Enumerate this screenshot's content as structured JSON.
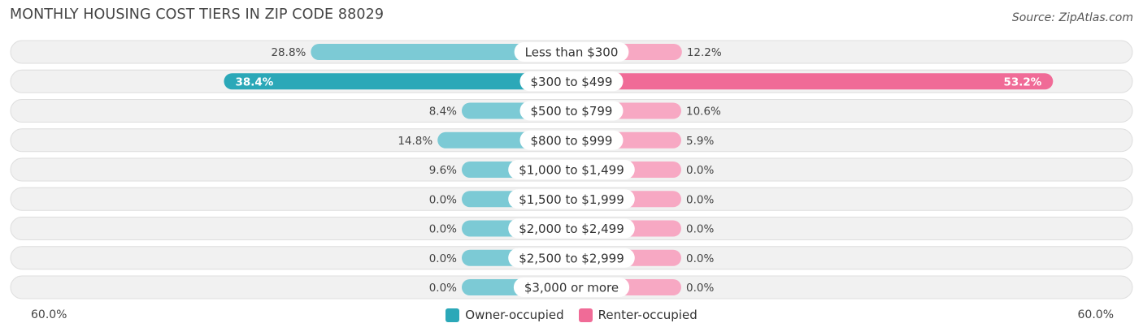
{
  "header": {
    "title": "MONTHLY HOUSING COST TIERS IN ZIP CODE 88029",
    "source": "Source: ZipAtlas.com"
  },
  "colors": {
    "owner": "#2ba8b8",
    "owner_light": "#7ccad5",
    "renter": "#f06b97",
    "renter_light": "#f7a8c3",
    "row_bg": "#f1f1f1",
    "row_border": "#dedede"
  },
  "axis": {
    "left_label": "60.0%",
    "right_label": "60.0%"
  },
  "legend": {
    "owner_label": "Owner-occupied",
    "renter_label": "Renter-occupied"
  },
  "chart_data": {
    "type": "bar",
    "orientation": "diverging-horizontal",
    "xlim": [
      -60,
      60
    ],
    "categories": [
      "Less than $300",
      "$300 to $499",
      "$500 to $799",
      "$800 to $999",
      "$1,000 to $1,499",
      "$1,500 to $1,999",
      "$2,000 to $2,499",
      "$2,500 to $2,999",
      "$3,000 or more"
    ],
    "series": [
      {
        "name": "Owner-occupied",
        "values": [
          28.8,
          38.4,
          8.4,
          14.8,
          9.6,
          0.0,
          0.0,
          0.0,
          0.0
        ],
        "labels": [
          "28.8%",
          "38.4%",
          "8.4%",
          "14.8%",
          "9.6%",
          "0.0%",
          "0.0%",
          "0.0%",
          "0.0%"
        ]
      },
      {
        "name": "Renter-occupied",
        "values": [
          12.2,
          53.2,
          10.6,
          5.9,
          0.0,
          0.0,
          0.0,
          0.0,
          0.0
        ],
        "labels": [
          "12.2%",
          "53.2%",
          "10.6%",
          "5.9%",
          "0.0%",
          "0.0%",
          "0.0%",
          "0.0%",
          "0.0%"
        ]
      }
    ]
  }
}
